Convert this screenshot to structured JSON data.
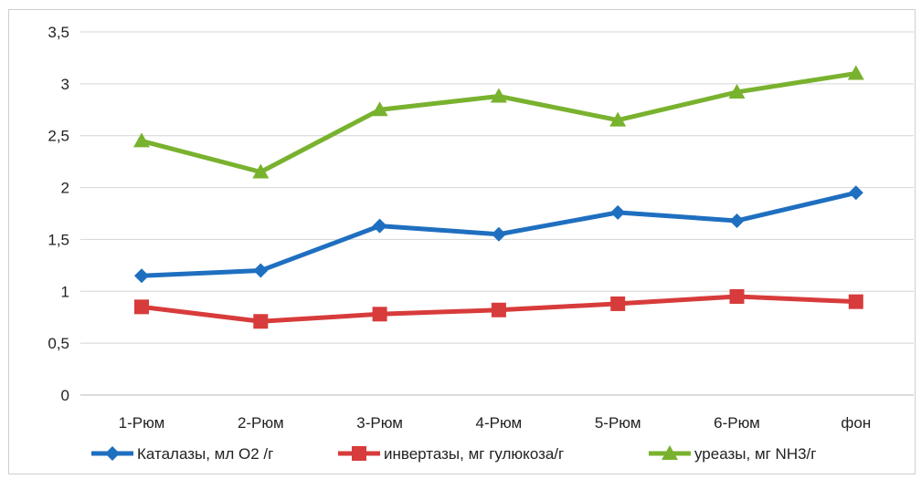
{
  "chart_data": {
    "type": "line",
    "title": "",
    "xlabel": "",
    "ylabel": "",
    "categories": [
      "1-Рюм",
      "2-Рюм",
      "3-Рюм",
      "4-Рюм",
      "5-Рюм",
      "6-Рюм",
      "фон"
    ],
    "ylim": [
      0,
      3.5
    ],
    "yticks": [
      0,
      0.5,
      1,
      1.5,
      2,
      2.5,
      3,
      3.5
    ],
    "ytick_labels": [
      "0",
      "0,5",
      "1",
      "1,5",
      "2",
      "2,5",
      "3",
      "3,5"
    ],
    "grid": "horizontal",
    "legend": "bottom",
    "series": [
      {
        "name": "Каталазы, мл О2 /г",
        "marker": "diamond",
        "color": "#1f6fc0",
        "values": [
          1.15,
          1.2,
          1.63,
          1.55,
          1.76,
          1.68,
          1.95
        ]
      },
      {
        "name": "инвертазы, мг гулюкоза/г",
        "marker": "square",
        "color": "#d83b3b",
        "values": [
          0.85,
          0.71,
          0.78,
          0.82,
          0.88,
          0.95,
          0.9
        ]
      },
      {
        "name": "уреазы, мг NH3/г",
        "marker": "triangle",
        "color": "#79b22e",
        "values": [
          2.45,
          2.15,
          2.75,
          2.88,
          2.65,
          2.92,
          3.1
        ]
      }
    ]
  }
}
